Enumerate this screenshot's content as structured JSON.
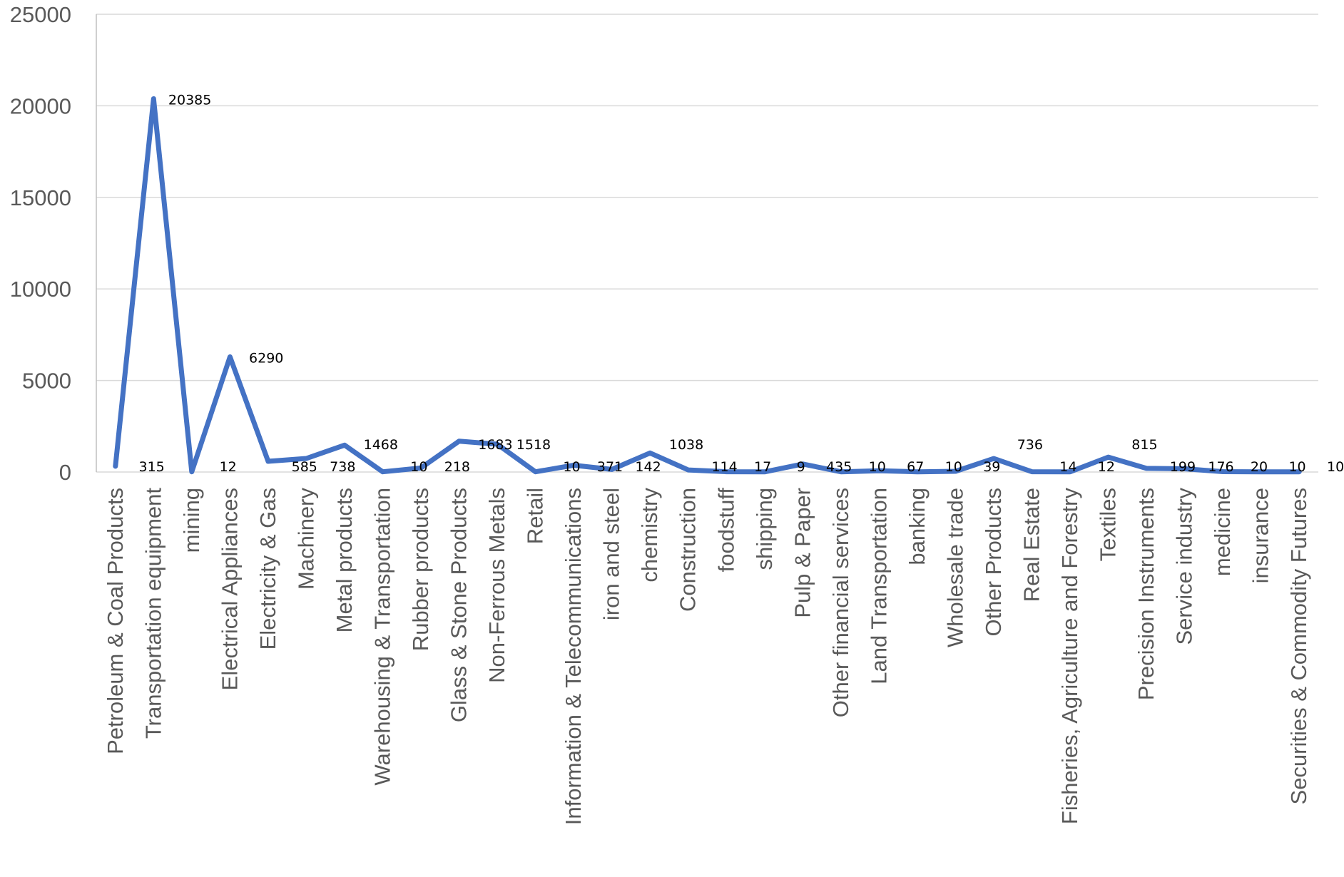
{
  "chart_data": {
    "type": "line",
    "title": "",
    "xlabel": "",
    "ylabel": "",
    "ylim": [
      0,
      25000
    ],
    "yticks": [
      "0",
      "5000",
      "10000",
      "15000",
      "20000",
      "25000"
    ],
    "grid": true,
    "legend": "none",
    "line_color": "#4472C4",
    "categories": [
      "Petroleum & Coal Products",
      "Transportation equipment",
      "mining",
      "Electrical Appliances",
      "Electricity & Gas",
      "Machinery",
      "Metal products",
      "Warehousing & Transportation",
      "Rubber products",
      "Glass & Stone Products",
      "Non-Ferrous Metals",
      "Retail",
      "Information & Telecommunications",
      "iron and steel",
      "chemistry",
      "Construction",
      "foodstuff",
      "shipping",
      "Pulp & Paper",
      "Other financial services",
      "Land Transportation",
      "banking",
      "Wholesale trade",
      "Other Products",
      "Real Estate",
      "Fisheries, Agriculture and Forestry",
      "Textiles",
      "Precision Instruments",
      "Service industry",
      "medicine",
      "insurance",
      "Securities & Commodity Futures"
    ],
    "values": [
      315,
      20385,
      12,
      6290,
      585,
      738,
      1468,
      10,
      218,
      1683,
      1518,
      10,
      371,
      142,
      1038,
      114,
      17,
      9,
      435,
      10,
      67,
      10,
      39,
      736,
      14,
      12,
      815,
      199,
      176,
      20,
      10,
      10
    ],
    "data_labels": [
      "315",
      "20385",
      "12",
      "6290",
      "585",
      "738",
      "1468",
      "10",
      "218",
      "1683",
      "1518",
      "10",
      "371",
      "142",
      "1038",
      "114",
      "17",
      "9",
      "435",
      "10",
      "67",
      "10",
      "39",
      "736",
      "14",
      "12",
      "815",
      "199",
      "176",
      "20",
      "10",
      "10"
    ]
  }
}
